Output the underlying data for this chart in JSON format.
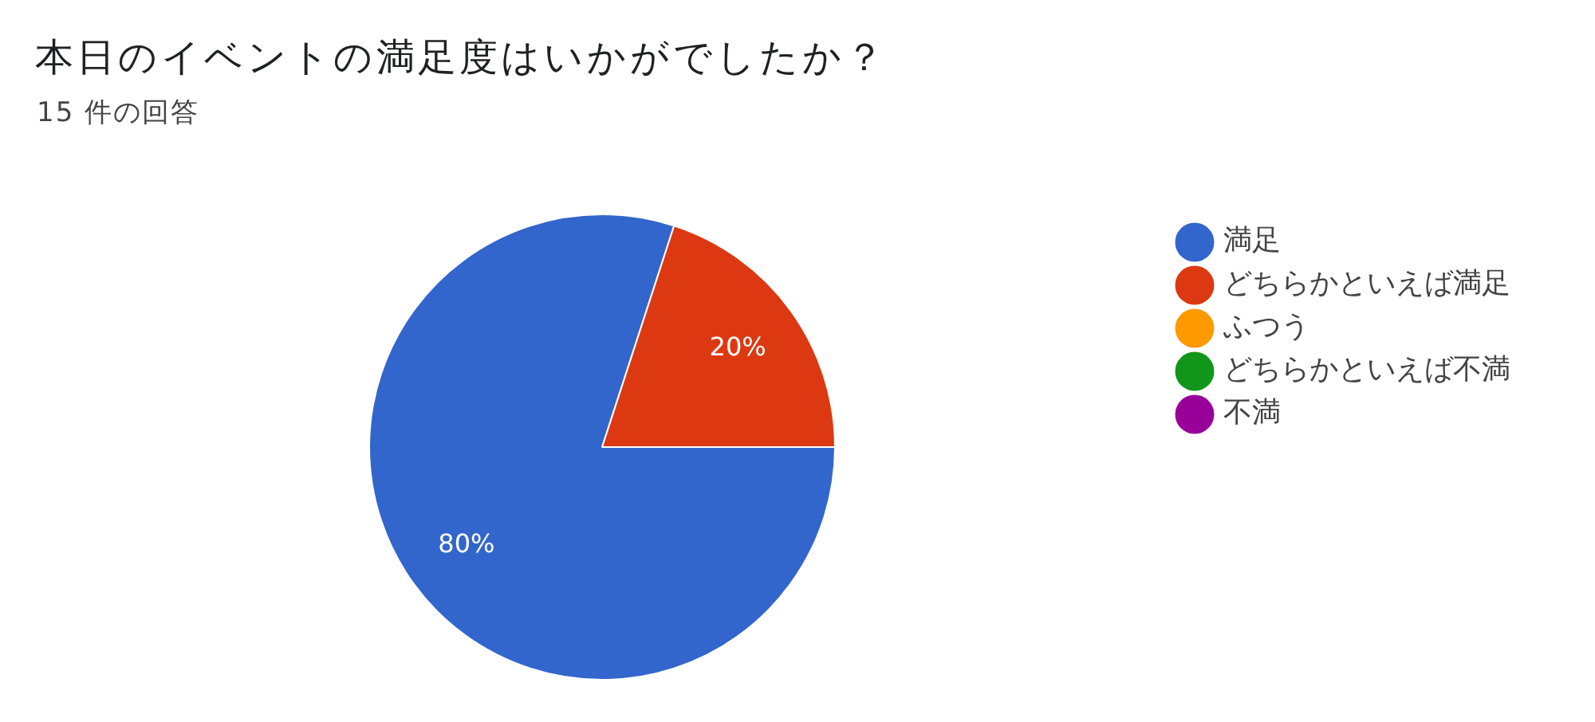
{
  "chart_data": {
    "type": "pie",
    "title": "本日のイベントの満足度はいかがでしたか？",
    "subtitle": "15 件の回答",
    "categories": [
      "満足",
      "どちらかといえば満足",
      "ふつう",
      "どちらかといえば不満",
      "不満"
    ],
    "values": [
      80,
      20,
      0,
      0,
      0
    ],
    "colors": [
      "#3366cc",
      "#dc3912",
      "#ff9900",
      "#109618",
      "#990099"
    ],
    "value_labels": [
      "80%",
      "20%",
      null,
      null,
      null
    ],
    "legend": "right"
  }
}
